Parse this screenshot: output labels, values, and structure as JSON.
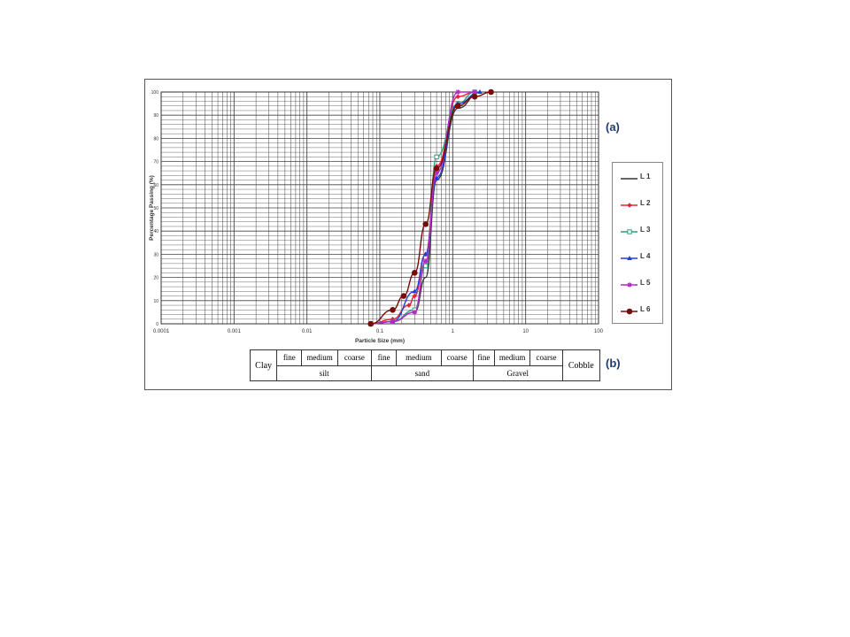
{
  "figure": {
    "label_a": "(a)",
    "label_b": "(b)"
  },
  "chart_data": {
    "type": "line",
    "xlabel": "Particle Size (mm)",
    "ylabel": "Percentage Passing (%)",
    "x_scale": "log",
    "xlim": [
      0.0001,
      100
    ],
    "ylim": [
      0,
      100
    ],
    "x_ticks": [
      "0.0001",
      "0.001",
      "0.01",
      "0.1",
      "1",
      "10",
      "100"
    ],
    "y_ticks": [
      "0",
      "10",
      "20",
      "30",
      "40",
      "50",
      "60",
      "70",
      "80",
      "90",
      "100"
    ],
    "grid": true,
    "legend_position": "right",
    "series": [
      {
        "name": "L 1",
        "color": "#333333",
        "marker": "none",
        "x": [
          0.075,
          0.15,
          0.3,
          0.425,
          0.6,
          1.18,
          2.36
        ],
        "y": [
          0,
          1,
          5,
          20,
          62,
          93,
          100
        ]
      },
      {
        "name": "L 2",
        "color": "#e8213a",
        "marker": "diamond",
        "x": [
          0.075,
          0.15,
          0.25,
          0.3,
          0.425,
          0.6,
          1.18,
          2.0
        ],
        "y": [
          0,
          2,
          8,
          12,
          30,
          68,
          98,
          100
        ]
      },
      {
        "name": "L 3",
        "color": "#2e9e80",
        "marker": "square",
        "x": [
          0.075,
          0.15,
          0.3,
          0.425,
          0.6,
          1.18,
          2.0
        ],
        "y": [
          0,
          1,
          6,
          25,
          72,
          95,
          100
        ]
      },
      {
        "name": "L 4",
        "color": "#1f3fd8",
        "marker": "triangle",
        "x": [
          0.075,
          0.15,
          0.3,
          0.425,
          0.6,
          1.18,
          2.36
        ],
        "y": [
          0,
          1,
          14,
          30,
          63,
          95,
          100
        ]
      },
      {
        "name": "L 5",
        "color": "#b527c7",
        "marker": "star",
        "x": [
          0.075,
          0.15,
          0.3,
          0.425,
          0.6,
          1.18,
          2.0
        ],
        "y": [
          0,
          1,
          5,
          27,
          65,
          100,
          100
        ]
      },
      {
        "name": "L 6",
        "color": "#7a0a0a",
        "marker": "circle",
        "x": [
          0.075,
          0.15,
          0.212,
          0.3,
          0.425,
          0.6,
          1.18,
          2.0,
          3.35
        ],
        "y": [
          0,
          6,
          12,
          22,
          43,
          67,
          94,
          98,
          100
        ]
      }
    ]
  },
  "classification_table": {
    "clay": "Clay",
    "cobble": "Cobble",
    "sub_cells": [
      "fine",
      "medium",
      "coarse",
      "fine",
      "medium",
      "coarse",
      "fine",
      "medium",
      "coarse"
    ],
    "groups": [
      "silt",
      "sand",
      "Gravel"
    ]
  }
}
